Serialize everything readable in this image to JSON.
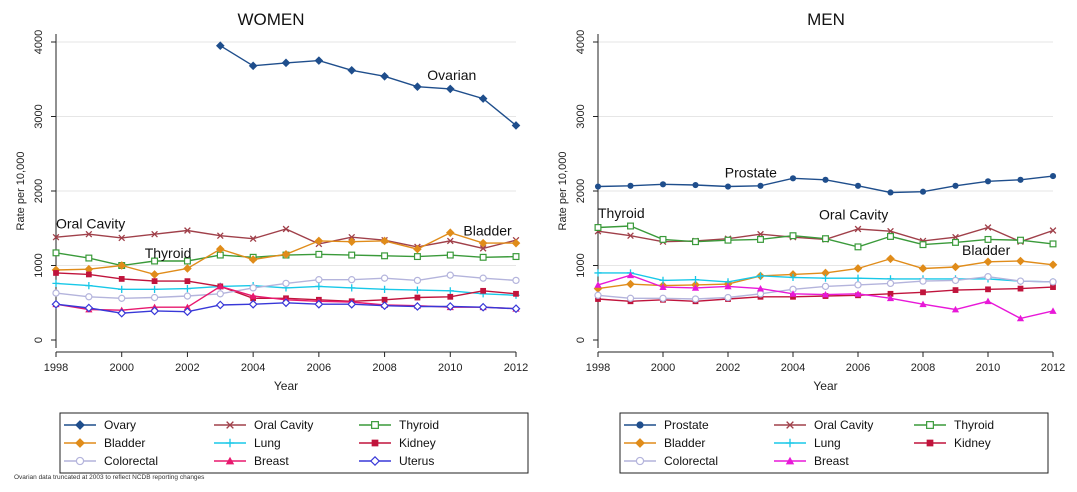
{
  "footnote": "Ovarian data truncated at 2003 to reflect NCDB reporting changes",
  "chart_data": [
    {
      "type": "line",
      "title": "WOMEN",
      "xlabel": "Year",
      "ylabel": "Rate per 10,000",
      "xlim": [
        1998,
        2012
      ],
      "ylim": [
        0,
        4000
      ],
      "xticks": [
        1998,
        2000,
        2002,
        2004,
        2006,
        2008,
        2010,
        2012
      ],
      "yticks": [
        0,
        1000,
        2000,
        3000,
        4000
      ],
      "grid": true,
      "legend_position": "bottom",
      "annotations": [
        {
          "text": "Ovarian",
          "x": 2009.3,
          "y": 3490
        },
        {
          "text": "Oral Cavity",
          "x": 1998.0,
          "y": 1500
        },
        {
          "text": "Thyroid",
          "x": 2000.7,
          "y": 1100
        },
        {
          "text": "Bladder",
          "x": 2010.4,
          "y": 1400
        }
      ],
      "series": [
        {
          "name": "Ovary",
          "color": "#1f4e8c",
          "marker": "diamond",
          "x": [
            2003,
            2004,
            2005,
            2006,
            2007,
            2008,
            2009,
            2010,
            2011,
            2012
          ],
          "y": [
            3950,
            3680,
            3720,
            3750,
            3620,
            3540,
            3400,
            3370,
            3240,
            2880
          ]
        },
        {
          "name": "Oral Cavity",
          "color": "#a0404a",
          "marker": "x",
          "x": [
            1998,
            1999,
            2000,
            2001,
            2002,
            2003,
            2004,
            2005,
            2006,
            2007,
            2008,
            2009,
            2010,
            2011,
            2012
          ],
          "y": [
            1380,
            1420,
            1370,
            1420,
            1470,
            1400,
            1360,
            1490,
            1290,
            1380,
            1340,
            1250,
            1330,
            1230,
            1340
          ]
        },
        {
          "name": "Thyroid",
          "color": "#3a9a3a",
          "marker": "square-open",
          "x": [
            1998,
            1999,
            2000,
            2001,
            2002,
            2003,
            2004,
            2005,
            2006,
            2007,
            2008,
            2009,
            2010,
            2011,
            2012
          ],
          "y": [
            1170,
            1100,
            1000,
            1060,
            1060,
            1140,
            1110,
            1140,
            1150,
            1140,
            1130,
            1120,
            1140,
            1110,
            1120
          ]
        },
        {
          "name": "Bladder",
          "color": "#e08c1a",
          "marker": "diamond",
          "x": [
            1998,
            1999,
            2000,
            2001,
            2002,
            2003,
            2004,
            2005,
            2006,
            2007,
            2008,
            2009,
            2010,
            2011,
            2012
          ],
          "y": [
            940,
            950,
            1000,
            880,
            960,
            1220,
            1080,
            1150,
            1330,
            1320,
            1330,
            1220,
            1440,
            1300,
            1300
          ]
        },
        {
          "name": "Lung",
          "color": "#18c8e8",
          "marker": "plus",
          "x": [
            1998,
            1999,
            2000,
            2001,
            2002,
            2003,
            2004,
            2005,
            2006,
            2007,
            2008,
            2009,
            2010,
            2011,
            2012
          ],
          "y": [
            760,
            730,
            680,
            680,
            690,
            720,
            730,
            700,
            720,
            700,
            680,
            670,
            660,
            620,
            600
          ]
        },
        {
          "name": "Kidney",
          "color": "#c0143c",
          "marker": "square",
          "x": [
            1998,
            1999,
            2000,
            2001,
            2002,
            2003,
            2004,
            2005,
            2006,
            2007,
            2008,
            2009,
            2010,
            2011,
            2012
          ],
          "y": [
            900,
            880,
            820,
            790,
            790,
            720,
            560,
            560,
            540,
            520,
            540,
            570,
            580,
            660,
            620
          ]
        },
        {
          "name": "Colorectal",
          "color": "#b4b4dc",
          "marker": "circle-open",
          "x": [
            1998,
            1999,
            2000,
            2001,
            2002,
            2003,
            2004,
            2005,
            2006,
            2007,
            2008,
            2009,
            2010,
            2011,
            2012
          ],
          "y": [
            630,
            580,
            560,
            570,
            590,
            620,
            700,
            760,
            810,
            810,
            830,
            800,
            870,
            830,
            800
          ]
        },
        {
          "name": "Breast",
          "color": "#e8186e",
          "marker": "triangle",
          "x": [
            1998,
            1999,
            2000,
            2001,
            2002,
            2003,
            2004,
            2005,
            2006,
            2007,
            2008,
            2009,
            2010,
            2011,
            2012
          ],
          "y": [
            480,
            410,
            400,
            440,
            440,
            720,
            590,
            540,
            520,
            510,
            470,
            460,
            440,
            440,
            420
          ]
        },
        {
          "name": "Uterus",
          "color": "#3838d8",
          "marker": "diamond-open",
          "x": [
            1998,
            1999,
            2000,
            2001,
            2002,
            2003,
            2004,
            2005,
            2006,
            2007,
            2008,
            2009,
            2010,
            2011,
            2012
          ],
          "y": [
            480,
            430,
            360,
            390,
            380,
            470,
            480,
            500,
            480,
            480,
            460,
            450,
            450,
            440,
            420
          ]
        }
      ]
    },
    {
      "type": "line",
      "title": "MEN",
      "xlabel": "Year",
      "ylabel": "Rate per 10,000",
      "xlim": [
        1998,
        2012
      ],
      "ylim": [
        0,
        4000
      ],
      "xticks": [
        1998,
        2000,
        2002,
        2004,
        2006,
        2008,
        2010,
        2012
      ],
      "yticks": [
        0,
        1000,
        2000,
        3000,
        4000
      ],
      "grid": true,
      "legend_position": "bottom",
      "annotations": [
        {
          "text": "Prostate",
          "x": 2001.9,
          "y": 2180
        },
        {
          "text": "Thyroid",
          "x": 1998.0,
          "y": 1640
        },
        {
          "text": "Oral Cavity",
          "x": 2004.8,
          "y": 1620
        },
        {
          "text": "Bladder",
          "x": 2009.2,
          "y": 1140
        }
      ],
      "series": [
        {
          "name": "Prostate",
          "color": "#1f4e8c",
          "marker": "circle",
          "x": [
            1998,
            1999,
            2000,
            2001,
            2002,
            2003,
            2004,
            2005,
            2006,
            2007,
            2008,
            2009,
            2010,
            2011,
            2012
          ],
          "y": [
            2060,
            2070,
            2090,
            2080,
            2060,
            2070,
            2170,
            2150,
            2070,
            1980,
            1990,
            2070,
            2130,
            2150,
            2200
          ]
        },
        {
          "name": "Oral Cavity",
          "color": "#a0404a",
          "marker": "x",
          "x": [
            1998,
            1999,
            2000,
            2001,
            2002,
            2003,
            2004,
            2005,
            2006,
            2007,
            2008,
            2009,
            2010,
            2011,
            2012
          ],
          "y": [
            1460,
            1400,
            1320,
            1330,
            1360,
            1420,
            1380,
            1350,
            1490,
            1460,
            1330,
            1380,
            1510,
            1320,
            1470
          ]
        },
        {
          "name": "Thyroid",
          "color": "#3a9a3a",
          "marker": "square-open",
          "x": [
            1998,
            1999,
            2000,
            2001,
            2002,
            2003,
            2004,
            2005,
            2006,
            2007,
            2008,
            2009,
            2010,
            2011,
            2012
          ],
          "y": [
            1510,
            1530,
            1350,
            1320,
            1340,
            1350,
            1400,
            1360,
            1250,
            1390,
            1280,
            1310,
            1350,
            1340,
            1290
          ]
        },
        {
          "name": "Bladder",
          "color": "#e08c1a",
          "marker": "diamond",
          "x": [
            1998,
            1999,
            2000,
            2001,
            2002,
            2003,
            2004,
            2005,
            2006,
            2007,
            2008,
            2009,
            2010,
            2011,
            2012
          ],
          "y": [
            690,
            750,
            730,
            740,
            750,
            860,
            880,
            900,
            960,
            1090,
            960,
            980,
            1050,
            1060,
            1010
          ]
        },
        {
          "name": "Lung",
          "color": "#18c8e8",
          "marker": "plus",
          "x": [
            1998,
            1999,
            2000,
            2001,
            2002,
            2003,
            2004,
            2005,
            2006,
            2007,
            2008,
            2009,
            2010,
            2011,
            2012
          ],
          "y": [
            900,
            900,
            800,
            810,
            780,
            860,
            840,
            830,
            830,
            820,
            820,
            820,
            820,
            790,
            780
          ]
        },
        {
          "name": "Kidney",
          "color": "#c0143c",
          "marker": "square",
          "x": [
            1998,
            1999,
            2000,
            2001,
            2002,
            2003,
            2004,
            2005,
            2006,
            2007,
            2008,
            2009,
            2010,
            2011,
            2012
          ],
          "y": [
            550,
            520,
            540,
            520,
            550,
            580,
            580,
            590,
            600,
            620,
            640,
            670,
            680,
            690,
            710
          ]
        },
        {
          "name": "Colorectal",
          "color": "#b4b4dc",
          "marker": "circle-open",
          "x": [
            1998,
            1999,
            2000,
            2001,
            2002,
            2003,
            2004,
            2005,
            2006,
            2007,
            2008,
            2009,
            2010,
            2011,
            2012
          ],
          "y": [
            600,
            560,
            560,
            550,
            570,
            620,
            680,
            720,
            740,
            760,
            790,
            800,
            850,
            790,
            780
          ]
        },
        {
          "name": "Breast",
          "color": "#e818d8",
          "marker": "triangle",
          "x": [
            1998,
            1999,
            2000,
            2001,
            2002,
            2003,
            2004,
            2005,
            2006,
            2007,
            2008,
            2009,
            2010,
            2011,
            2012
          ],
          "y": [
            740,
            870,
            710,
            700,
            720,
            690,
            620,
            610,
            620,
            560,
            480,
            410,
            520,
            290,
            390
          ]
        }
      ]
    }
  ]
}
